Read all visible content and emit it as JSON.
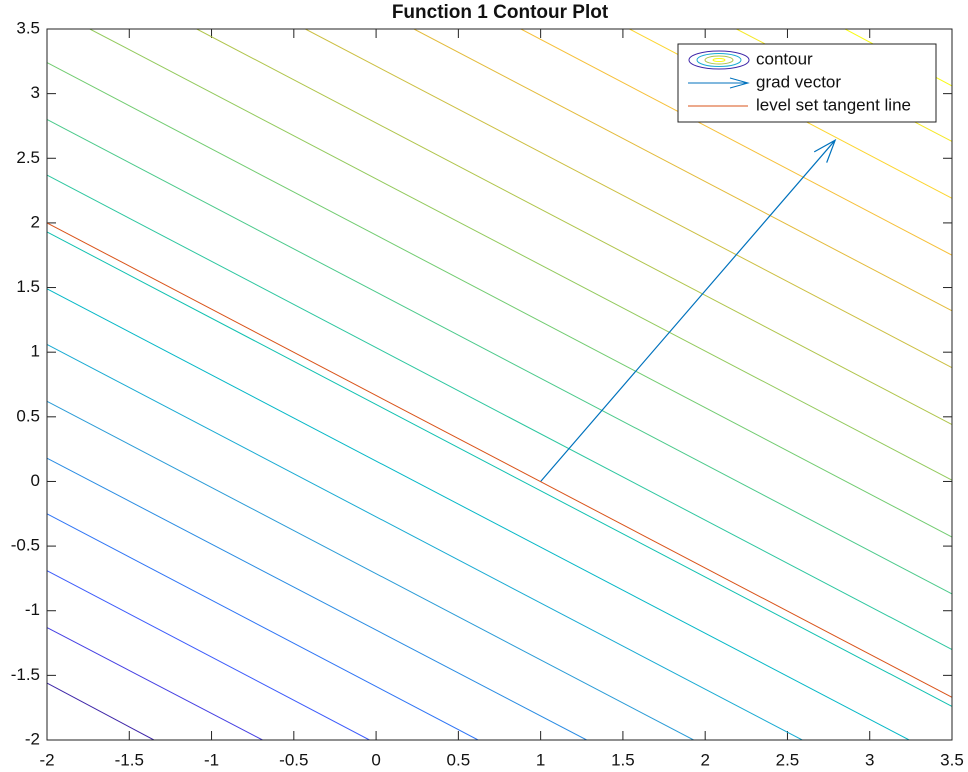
{
  "chart_data": {
    "type": "contour",
    "title": "Function 1 Contour Plot",
    "xlim": [
      -2,
      3.5
    ],
    "ylim": [
      -2,
      3.5
    ],
    "xticks": [
      -2,
      -1.5,
      -1,
      -0.5,
      0,
      0.5,
      1,
      1.5,
      2,
      2.5,
      3,
      3.5
    ],
    "yticks": [
      -2,
      -1.5,
      -1,
      -0.5,
      0,
      0.5,
      1,
      1.5,
      2,
      2.5,
      3,
      3.5
    ],
    "legend": "northeast",
    "series": [
      {
        "name": "contour",
        "type": "contour",
        "lines": [
          {
            "x": [
              -2,
              -1.35
            ],
            "y": [
              -1.56,
              -2
            ],
            "color": "#3e26a8"
          },
          {
            "x": [
              -2,
              -0.69
            ],
            "y": [
              -1.13,
              -2
            ],
            "color": "#4640e3"
          },
          {
            "x": [
              -2,
              -0.04
            ],
            "y": [
              -0.69,
              -2
            ],
            "color": "#3d5cfb"
          },
          {
            "x": [
              -2,
              0.62
            ],
            "y": [
              -0.25,
              -2
            ],
            "color": "#2f75f5"
          },
          {
            "x": [
              -2,
              1.28
            ],
            "y": [
              0.18,
              -2
            ],
            "color": "#2a8ce3"
          },
          {
            "x": [
              -2,
              1.93
            ],
            "y": [
              0.62,
              -2
            ],
            "color": "#2b9cd7"
          },
          {
            "x": [
              -2,
              2.59
            ],
            "y": [
              1.06,
              -2
            ],
            "color": "#1aabd3"
          },
          {
            "x": [
              -2,
              3.24
            ],
            "y": [
              1.49,
              -2
            ],
            "color": "#06b8c7"
          },
          {
            "x": [
              -2,
              3.5
            ],
            "y": [
              1.93,
              -1.74
            ],
            "color": "#11c1b1"
          },
          {
            "x": [
              -2,
              3.5
            ],
            "y": [
              2.37,
              -1.3
            ],
            "color": "#2ec7a0"
          },
          {
            "x": [
              -2,
              3.5
            ],
            "y": [
              2.8,
              -0.87
            ],
            "color": "#4cca8b"
          },
          {
            "x": [
              -2,
              3.5
            ],
            "y": [
              3.24,
              -0.43
            ],
            "color": "#72cc71"
          },
          {
            "x": [
              -1.74,
              3.5
            ],
            "y": [
              3.5,
              0.01
            ],
            "color": "#93ca5d"
          },
          {
            "x": [
              -1.09,
              3.5
            ],
            "y": [
              3.5,
              0.44
            ],
            "color": "#b0c54c"
          },
          {
            "x": [
              -0.43,
              3.5
            ],
            "y": [
              3.5,
              0.88
            ],
            "color": "#ccbf42"
          },
          {
            "x": [
              0.23,
              3.5
            ],
            "y": [
              3.5,
              1.32
            ],
            "color": "#e3bb3b"
          },
          {
            "x": [
              0.88,
              3.5
            ],
            "y": [
              3.5,
              1.75
            ],
            "color": "#f6c03a"
          },
          {
            "x": [
              1.54,
              3.5
            ],
            "y": [
              3.5,
              2.19
            ],
            "color": "#fcd52f"
          },
          {
            "x": [
              2.19,
              3.5
            ],
            "y": [
              3.5,
              2.63
            ],
            "color": "#f5e826"
          },
          {
            "x": [
              2.85,
              3.5
            ],
            "y": [
              3.5,
              3.06
            ],
            "color": "#f9fb15"
          }
        ]
      },
      {
        "name": "grad vector",
        "type": "quiver",
        "color": "#0072bd",
        "x": 1,
        "y": 0,
        "u": 1.79,
        "v": 2.64
      },
      {
        "name": "level set tangent line",
        "type": "line",
        "color": "#d95319",
        "x": [
          -2,
          3.5
        ],
        "y": [
          2,
          -1.67
        ]
      }
    ]
  }
}
